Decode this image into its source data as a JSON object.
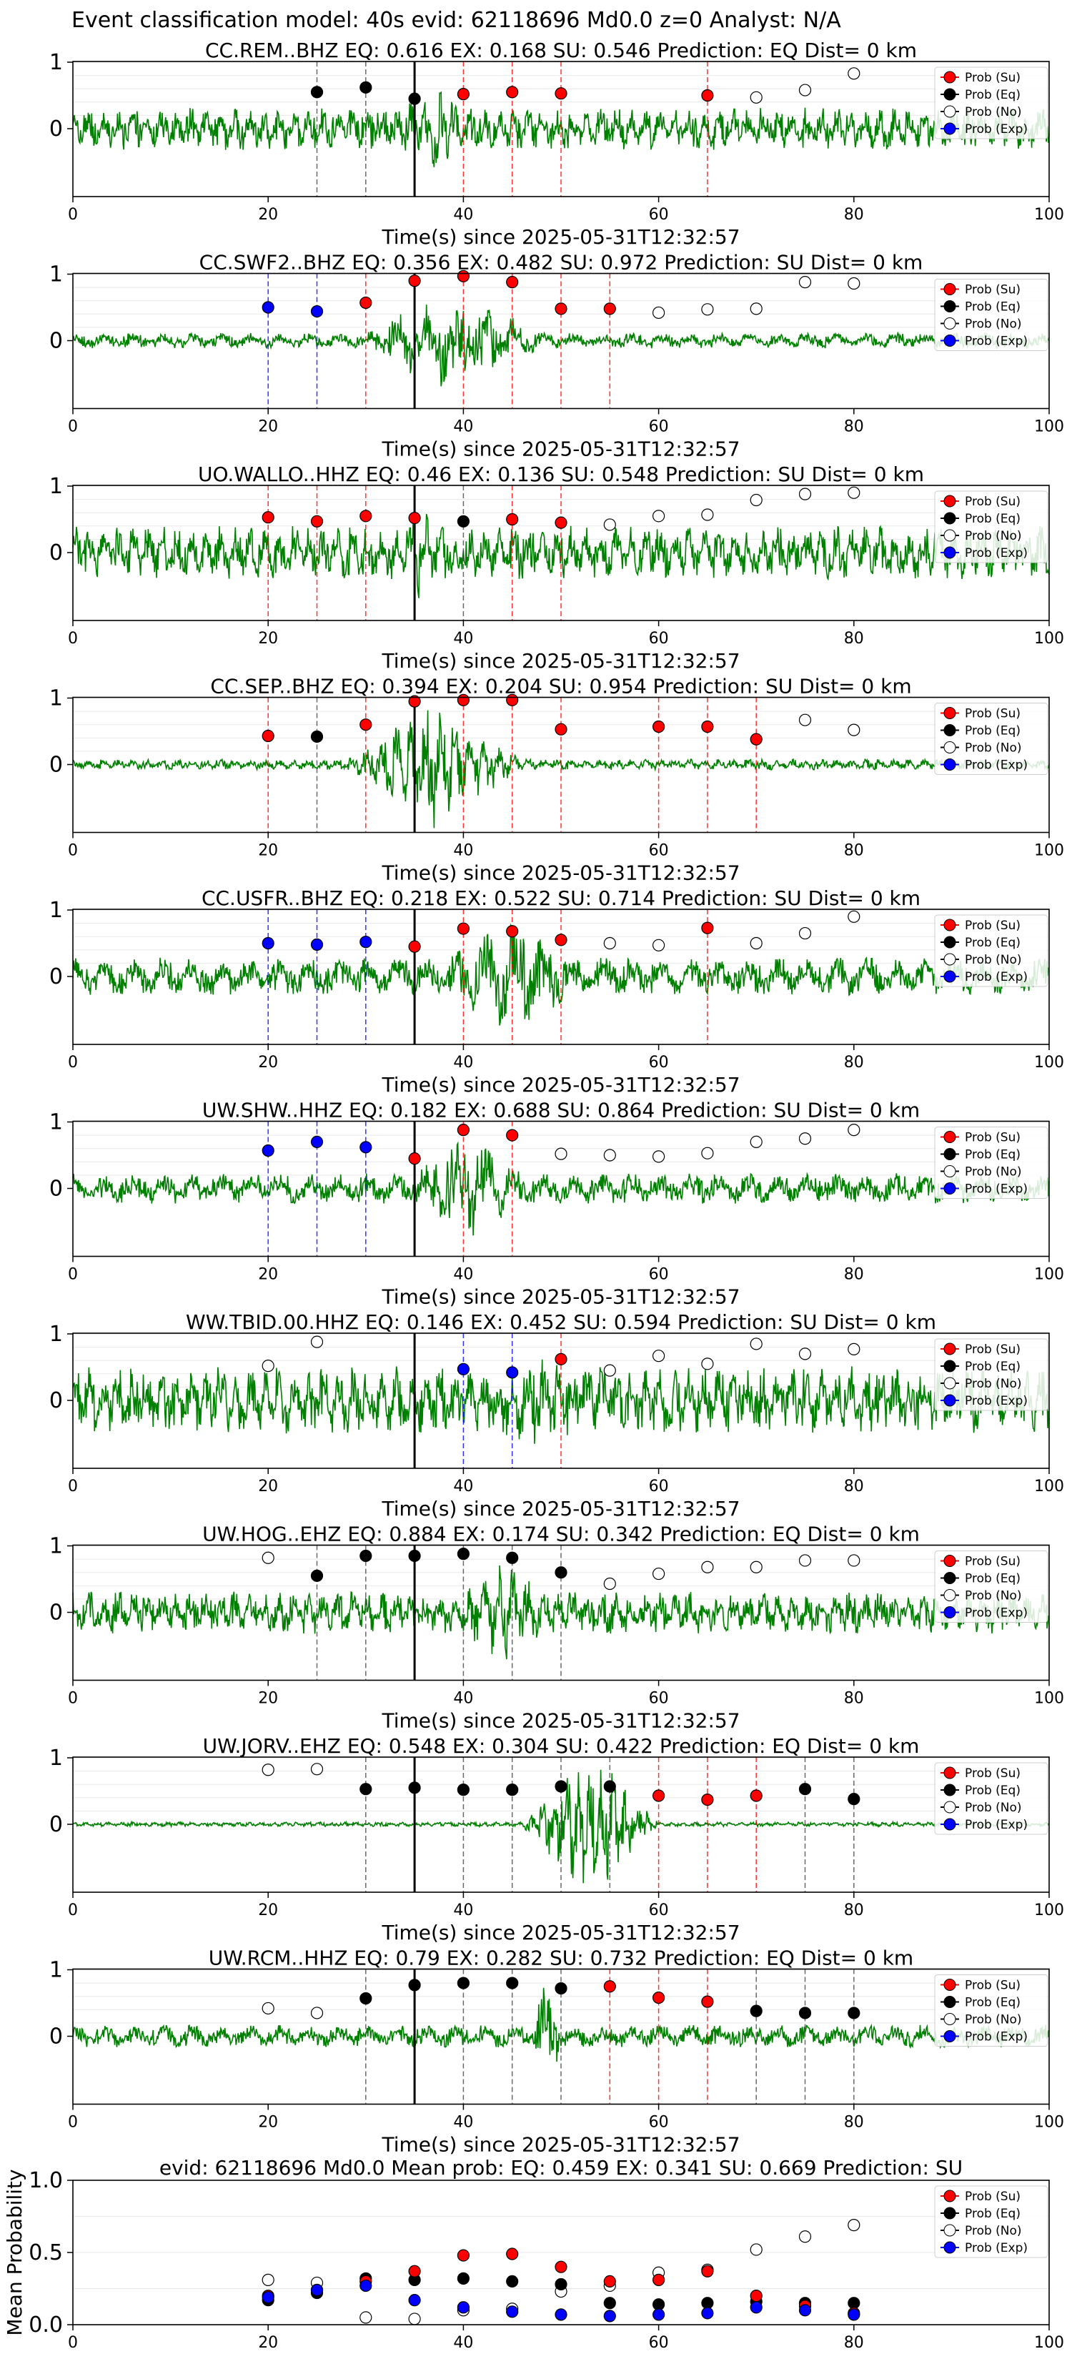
{
  "figure_title": "Event classification model: 40s evid: 62118696 Md0.0 z=0 Analyst: N/A",
  "colors": {
    "su": "#ff0000",
    "eq": "#000000",
    "no": "#ffffff",
    "exp": "#0000ff",
    "waveform": "#008000"
  },
  "legend": [
    "Prob (Su)",
    "Prob (Eq)",
    "Prob (No)",
    "Prob (Exp)"
  ],
  "chart_data": [
    {
      "type": "line+scatter",
      "title": "CC.REM..BHZ   EQ: 0.616  EX: 0.168  SU: 0.546   Prediction: EQ",
      "dist": "Dist= 0 km",
      "xlabel": "Time(s) since 2025-05-31T12:32:57",
      "xlim": [
        0,
        100
      ],
      "ylim": [
        -1,
        1
      ],
      "yticks": [
        "1",
        "0"
      ],
      "xticks": [
        "0",
        "20",
        "40",
        "60",
        "80",
        "100"
      ],
      "pick_time": 35,
      "amp": 0.7,
      "burst": [
        34,
        40
      ],
      "noise": 0.28,
      "period": 1.5,
      "points": {
        "eq": [
          [
            25,
            0.55
          ],
          [
            30,
            0.62
          ],
          [
            35,
            0.45
          ]
        ],
        "su": [
          [
            40,
            0.52
          ],
          [
            45,
            0.55
          ],
          [
            50,
            0.53
          ],
          [
            65,
            0.5
          ]
        ],
        "no": [
          [
            70,
            0.47
          ],
          [
            75,
            0.58
          ],
          [
            80,
            0.83
          ]
        ],
        "exp": []
      }
    },
    {
      "type": "line+scatter",
      "title": "CC.SWF2..BHZ   EQ: 0.356  EX: 0.482  SU: 0.972   Prediction: SU",
      "dist": "Dist= 0 km",
      "xlabel": "Time(s) since 2025-05-31T12:32:57",
      "xlim": [
        0,
        100
      ],
      "ylim": [
        -1,
        1
      ],
      "yticks": [
        "1",
        "0"
      ],
      "xticks": [
        "0",
        "20",
        "40",
        "60",
        "80",
        "100"
      ],
      "pick_time": 35,
      "amp": 0.75,
      "burst": [
        30,
        48
      ],
      "noise": 0.1,
      "period": 3,
      "points": {
        "eq": [],
        "su": [
          [
            30,
            0.57
          ],
          [
            35,
            0.9
          ],
          [
            40,
            0.97
          ],
          [
            45,
            0.88
          ],
          [
            50,
            0.48
          ],
          [
            55,
            0.48
          ]
        ],
        "no": [
          [
            60,
            0.42
          ],
          [
            65,
            0.47
          ],
          [
            70,
            0.48
          ],
          [
            75,
            0.88
          ],
          [
            80,
            0.86
          ]
        ],
        "exp": [
          [
            20,
            0.5
          ],
          [
            25,
            0.44
          ]
        ]
      }
    },
    {
      "type": "line+scatter",
      "title": "UO.WALLO..HHZ   EQ: 0.46  EX: 0.136  SU: 0.548   Prediction: SU",
      "dist": "Dist= 0 km",
      "xlabel": "Time(s) since 2025-05-31T12:32:57",
      "xlim": [
        0,
        100
      ],
      "ylim": [
        -1,
        1
      ],
      "yticks": [
        "1",
        "0"
      ],
      "xticks": [
        "0",
        "20",
        "40",
        "60",
        "80",
        "100"
      ],
      "pick_time": 35,
      "amp": 0.7,
      "burst": [
        34,
        38
      ],
      "noise": 0.35,
      "period": 1.5,
      "points": {
        "eq": [
          [
            40,
            0.47
          ]
        ],
        "su": [
          [
            20,
            0.53
          ],
          [
            25,
            0.47
          ],
          [
            30,
            0.55
          ],
          [
            35,
            0.52
          ],
          [
            45,
            0.5
          ],
          [
            50,
            0.45
          ]
        ],
        "no": [
          [
            55,
            0.42
          ],
          [
            60,
            0.55
          ],
          [
            65,
            0.57
          ],
          [
            70,
            0.79
          ],
          [
            75,
            0.88
          ],
          [
            80,
            0.9
          ]
        ],
        "exp": []
      }
    },
    {
      "type": "line+scatter",
      "title": "CC.SEP..BHZ   EQ: 0.394  EX: 0.204  SU: 0.954   Prediction: SU",
      "dist": "Dist= 0 km",
      "xlabel": "Time(s) since 2025-05-31T12:32:57",
      "xlim": [
        0,
        100
      ],
      "ylim": [
        -1,
        1
      ],
      "yticks": [
        "1",
        "0"
      ],
      "xticks": [
        "0",
        "20",
        "40",
        "60",
        "80",
        "100"
      ],
      "pick_time": 35,
      "amp": 0.85,
      "burst": [
        28,
        46
      ],
      "noise": 0.07,
      "period": 1.5,
      "points": {
        "eq": [
          [
            25,
            0.42
          ]
        ],
        "su": [
          [
            20,
            0.43
          ],
          [
            30,
            0.6
          ],
          [
            35,
            0.95
          ],
          [
            40,
            0.97
          ],
          [
            45,
            0.97
          ],
          [
            50,
            0.53
          ],
          [
            60,
            0.57
          ],
          [
            65,
            0.57
          ],
          [
            70,
            0.38
          ]
        ],
        "no": [
          [
            75,
            0.67
          ],
          [
            80,
            0.52
          ]
        ],
        "exp": []
      }
    },
    {
      "type": "line+scatter",
      "title": "CC.USFR..BHZ   EQ: 0.218  EX: 0.522  SU: 0.714   Prediction: SU",
      "dist": "Dist= 0 km",
      "xlabel": "Time(s) since 2025-05-31T12:32:57",
      "xlim": [
        0,
        100
      ],
      "ylim": [
        -1,
        1
      ],
      "yticks": [
        "1",
        "0"
      ],
      "xticks": [
        "0",
        "20",
        "40",
        "60",
        "80",
        "100"
      ],
      "pick_time": 35,
      "amp": 0.8,
      "burst": [
        38,
        52
      ],
      "noise": 0.25,
      "period": 3,
      "points": {
        "eq": [],
        "su": [
          [
            35,
            0.45
          ],
          [
            40,
            0.72
          ],
          [
            45,
            0.68
          ],
          [
            50,
            0.55
          ],
          [
            65,
            0.73
          ]
        ],
        "no": [
          [
            55,
            0.5
          ],
          [
            60,
            0.47
          ],
          [
            70,
            0.5
          ],
          [
            75,
            0.65
          ],
          [
            80,
            0.9
          ]
        ],
        "exp": [
          [
            20,
            0.5
          ],
          [
            25,
            0.48
          ],
          [
            30,
            0.52
          ]
        ]
      }
    },
    {
      "type": "line+scatter",
      "title": "UW.SHW..HHZ   EQ: 0.182  EX: 0.688  SU: 0.864   Prediction: SU",
      "dist": "Dist= 0 km",
      "xlabel": "Time(s) since 2025-05-31T12:32:57",
      "xlim": [
        0,
        100
      ],
      "ylim": [
        -1,
        1
      ],
      "yticks": [
        "1",
        "0"
      ],
      "xticks": [
        "0",
        "20",
        "40",
        "60",
        "80",
        "100"
      ],
      "pick_time": 35,
      "amp": 0.75,
      "burst": [
        35,
        46
      ],
      "noise": 0.2,
      "period": 3,
      "points": {
        "eq": [],
        "su": [
          [
            35,
            0.45
          ],
          [
            40,
            0.88
          ],
          [
            45,
            0.8
          ]
        ],
        "no": [
          [
            50,
            0.52
          ],
          [
            55,
            0.5
          ],
          [
            60,
            0.48
          ],
          [
            65,
            0.53
          ],
          [
            70,
            0.7
          ],
          [
            75,
            0.75
          ],
          [
            80,
            0.88
          ]
        ],
        "exp": [
          [
            20,
            0.57
          ],
          [
            25,
            0.7
          ],
          [
            30,
            0.62
          ]
        ]
      }
    },
    {
      "type": "line+scatter",
      "title": "WW.TBID.00.HHZ   EQ: 0.146  EX: 0.452  SU: 0.594   Prediction: SU",
      "dist": "Dist= 0 km",
      "xlabel": "Time(s) since 2025-05-31T12:32:57",
      "xlim": [
        0,
        100
      ],
      "ylim": [
        -1,
        1
      ],
      "yticks": [
        "1",
        "0"
      ],
      "xticks": [
        "0",
        "20",
        "40",
        "60",
        "80",
        "100"
      ],
      "pick_time": 35,
      "amp": 0.6,
      "burst": [
        44,
        52
      ],
      "noise": 0.45,
      "period": 1.5,
      "points": {
        "eq": [],
        "su": [
          [
            50,
            0.62
          ]
        ],
        "no": [
          [
            20,
            0.52
          ],
          [
            25,
            0.88
          ],
          [
            55,
            0.45
          ],
          [
            60,
            0.67
          ],
          [
            65,
            0.55
          ],
          [
            70,
            0.85
          ],
          [
            75,
            0.7
          ],
          [
            80,
            0.77
          ]
        ],
        "exp": [
          [
            40,
            0.47
          ],
          [
            45,
            0.42
          ]
        ]
      }
    },
    {
      "type": "line+scatter",
      "title": "UW.HOG..EHZ   EQ: 0.884  EX: 0.174  SU: 0.342   Prediction: EQ",
      "dist": "Dist= 0 km",
      "xlabel": "Time(s) since 2025-05-31T12:32:57",
      "xlim": [
        0,
        100
      ],
      "ylim": [
        -1,
        1
      ],
      "yticks": [
        "1",
        "0"
      ],
      "xticks": [
        "0",
        "20",
        "40",
        "60",
        "80",
        "100"
      ],
      "pick_time": 35,
      "amp": 0.7,
      "burst": [
        40,
        48
      ],
      "noise": 0.28,
      "period": 1.5,
      "points": {
        "eq": [
          [
            25,
            0.55
          ],
          [
            30,
            0.85
          ],
          [
            35,
            0.85
          ],
          [
            40,
            0.88
          ],
          [
            45,
            0.82
          ],
          [
            50,
            0.6
          ]
        ],
        "su": [],
        "no": [
          [
            20,
            0.82
          ],
          [
            55,
            0.43
          ],
          [
            60,
            0.58
          ],
          [
            65,
            0.68
          ],
          [
            70,
            0.68
          ],
          [
            75,
            0.78
          ],
          [
            80,
            0.78
          ]
        ],
        "exp": []
      }
    },
    {
      "type": "line+scatter",
      "title": "UW.JORV..EHZ   EQ: 0.548  EX: 0.304  SU: 0.422   Prediction: EQ",
      "dist": "Dist= 0 km",
      "xlabel": "Time(s) since 2025-05-31T12:32:57",
      "xlim": [
        0,
        100
      ],
      "ylim": [
        -1,
        1
      ],
      "yticks": [
        "1",
        "0"
      ],
      "xticks": [
        "0",
        "20",
        "40",
        "60",
        "80",
        "100"
      ],
      "pick_time": 35,
      "amp": 1.0,
      "burst": [
        46,
        60
      ],
      "noise": 0.03,
      "period": 1.2,
      "points": {
        "eq": [
          [
            30,
            0.53
          ],
          [
            35,
            0.55
          ],
          [
            40,
            0.52
          ],
          [
            45,
            0.52
          ],
          [
            50,
            0.57
          ],
          [
            55,
            0.57
          ],
          [
            75,
            0.53
          ],
          [
            80,
            0.38
          ]
        ],
        "su": [
          [
            60,
            0.43
          ],
          [
            65,
            0.37
          ],
          [
            70,
            0.43
          ]
        ],
        "no": [
          [
            20,
            0.82
          ],
          [
            25,
            0.83
          ]
        ],
        "exp": []
      }
    },
    {
      "type": "line+scatter",
      "title": "UW.RCM..HHZ   EQ: 0.79  EX: 0.282  SU: 0.732   Prediction: EQ",
      "dist": "Dist= 0 km",
      "xlabel": "Time(s) since 2025-05-31T12:32:57",
      "xlim": [
        0,
        100
      ],
      "ylim": [
        -1,
        1
      ],
      "yticks": [
        "1",
        "0"
      ],
      "xticks": [
        "0",
        "20",
        "40",
        "60",
        "80",
        "100"
      ],
      "pick_time": 35,
      "amp": 0.8,
      "burst": [
        47,
        50
      ],
      "noise": 0.15,
      "period": 3,
      "points": {
        "eq": [
          [
            30,
            0.57
          ],
          [
            35,
            0.77
          ],
          [
            40,
            0.8
          ],
          [
            45,
            0.8
          ],
          [
            50,
            0.72
          ],
          [
            70,
            0.38
          ],
          [
            75,
            0.35
          ],
          [
            80,
            0.35
          ]
        ],
        "su": [
          [
            55,
            0.75
          ],
          [
            60,
            0.58
          ],
          [
            65,
            0.52
          ]
        ],
        "no": [
          [
            20,
            0.42
          ],
          [
            25,
            0.35
          ]
        ],
        "exp": []
      }
    },
    {
      "type": "scatter",
      "title": "evid: 62118696  Md0.0   Mean prob:    EQ: 0.459  EX: 0.341  SU: 0.669   Prediction: SU",
      "ylabel": "Mean Probability",
      "xlim": [
        0,
        100
      ],
      "ylim": [
        0,
        1
      ],
      "yticks": [
        "1.0",
        "0.5",
        "0.0"
      ],
      "xticks": [
        "0",
        "20",
        "40",
        "60",
        "80",
        "100"
      ],
      "points": {
        "su": [
          [
            20,
            0.2
          ],
          [
            25,
            0.24
          ],
          [
            30,
            0.3
          ],
          [
            35,
            0.37
          ],
          [
            40,
            0.48
          ],
          [
            45,
            0.49
          ],
          [
            50,
            0.4
          ],
          [
            55,
            0.3
          ],
          [
            60,
            0.31
          ],
          [
            65,
            0.37
          ],
          [
            70,
            0.2
          ],
          [
            75,
            0.13
          ],
          [
            80,
            0.08
          ]
        ],
        "eq": [
          [
            20,
            0.17
          ],
          [
            25,
            0.22
          ],
          [
            30,
            0.32
          ],
          [
            35,
            0.31
          ],
          [
            40,
            0.32
          ],
          [
            45,
            0.3
          ],
          [
            50,
            0.28
          ],
          [
            55,
            0.15
          ],
          [
            60,
            0.14
          ],
          [
            65,
            0.15
          ],
          [
            70,
            0.16
          ],
          [
            75,
            0.15
          ],
          [
            80,
            0.15
          ]
        ],
        "no": [
          [
            20,
            0.31
          ],
          [
            25,
            0.29
          ],
          [
            30,
            0.05
          ],
          [
            35,
            0.04
          ],
          [
            40,
            0.1
          ],
          [
            45,
            0.11
          ],
          [
            50,
            0.23
          ],
          [
            55,
            0.27
          ],
          [
            60,
            0.36
          ],
          [
            65,
            0.38
          ],
          [
            70,
            0.52
          ],
          [
            75,
            0.61
          ],
          [
            80,
            0.69
          ]
        ],
        "exp": [
          [
            20,
            0.19
          ],
          [
            25,
            0.24
          ],
          [
            30,
            0.27
          ],
          [
            35,
            0.17
          ],
          [
            40,
            0.12
          ],
          [
            45,
            0.09
          ],
          [
            50,
            0.07
          ],
          [
            55,
            0.06
          ],
          [
            60,
            0.07
          ],
          [
            65,
            0.08
          ],
          [
            70,
            0.12
          ],
          [
            75,
            0.1
          ],
          [
            80,
            0.07
          ]
        ]
      }
    }
  ]
}
